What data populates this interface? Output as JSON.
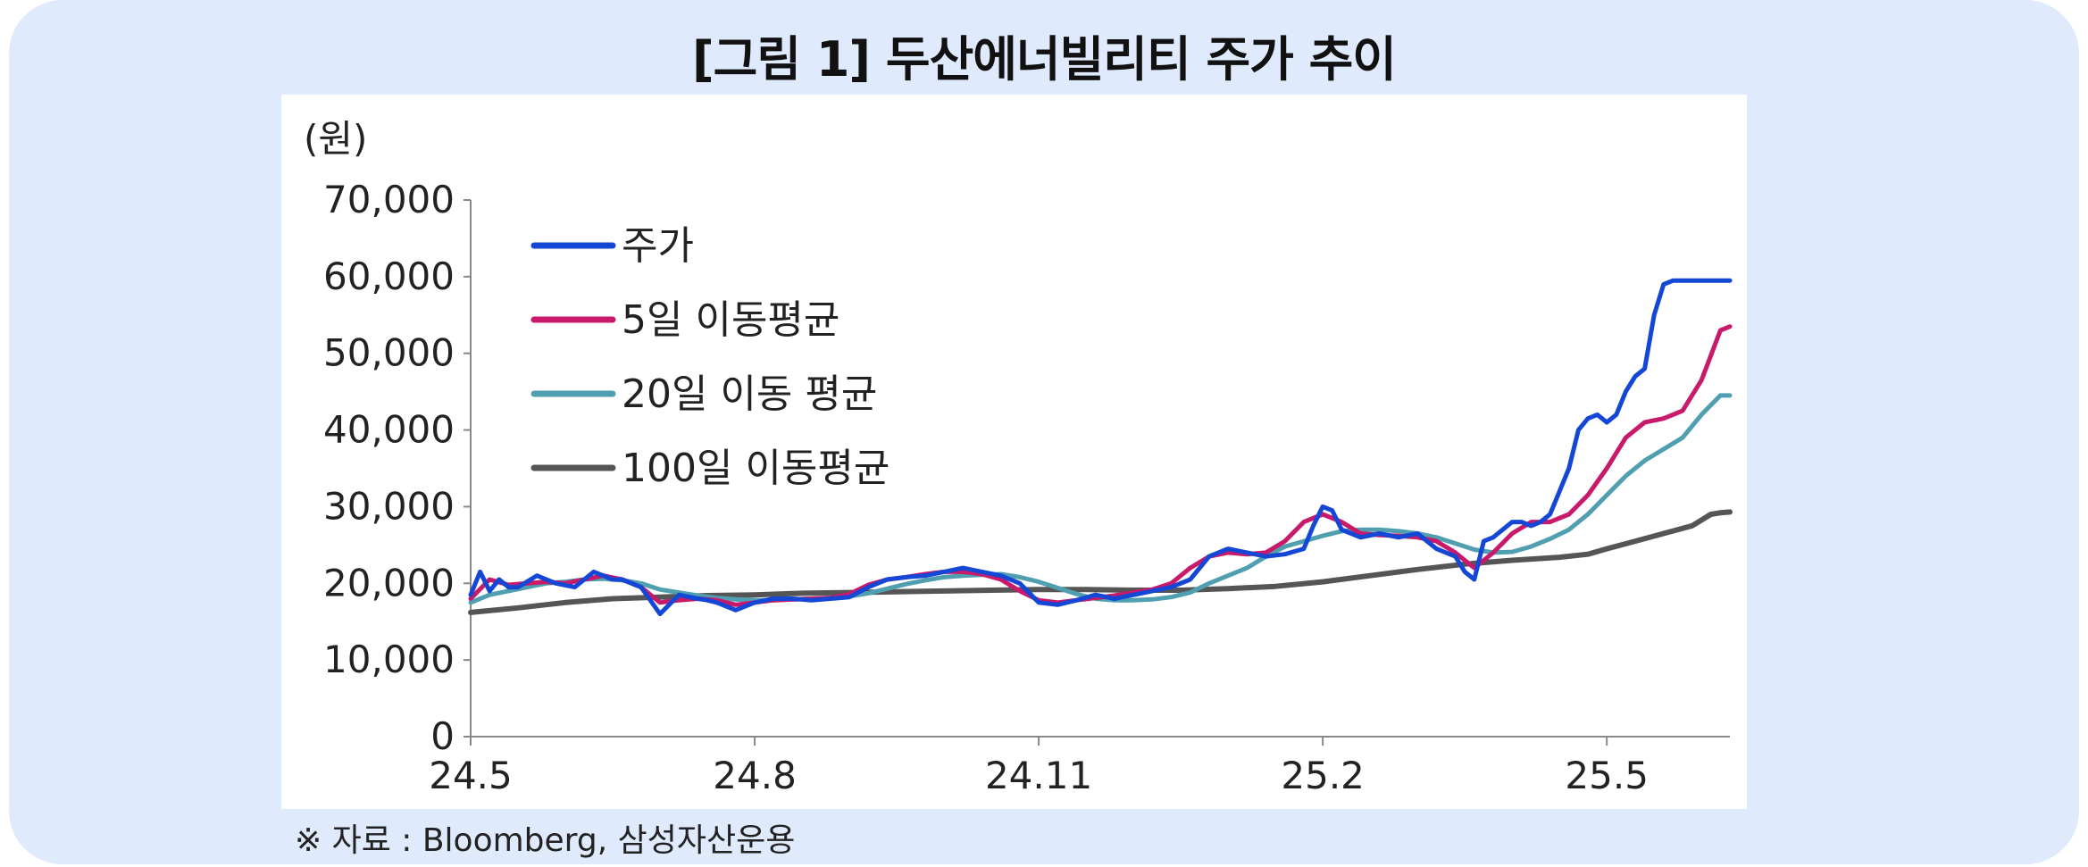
{
  "title": "[그림 1] 두산에너빌리티 주가 추이",
  "source": "※ 자료 : Bloomberg, 삼성자산운용",
  "colors": {
    "panel": "#dfeafc",
    "price": "#1447d6",
    "ma5": "#c8196b",
    "ma20": "#4f9fb0",
    "ma100": "#555555"
  },
  "chart_data": {
    "type": "line",
    "ylabel": "(원)",
    "ylim": [
      0,
      70000
    ],
    "yticks": [
      "70,000",
      "60,000",
      "50,000",
      "40,000",
      "30,000",
      "20,000",
      "10,000",
      "0"
    ],
    "xlim": [
      0,
      13.3
    ],
    "xticks": [
      {
        "label": "24.5",
        "x": 0
      },
      {
        "label": "24.8",
        "x": 3
      },
      {
        "label": "24.11",
        "x": 6
      },
      {
        "label": "25.2",
        "x": 9
      },
      {
        "label": "25.5",
        "x": 12
      }
    ],
    "legend_position": "top-left",
    "series": [
      {
        "name": "주가",
        "color_key": "price",
        "x": [
          0,
          0.1,
          0.2,
          0.3,
          0.4,
          0.5,
          0.7,
          0.9,
          1.1,
          1.3,
          1.5,
          1.6,
          1.8,
          2.0,
          2.2,
          2.4,
          2.5,
          2.6,
          2.8,
          3.0,
          3.2,
          3.4,
          3.6,
          3.8,
          4.0,
          4.2,
          4.4,
          4.6,
          4.8,
          5.0,
          5.2,
          5.4,
          5.6,
          5.8,
          6.0,
          6.2,
          6.4,
          6.6,
          6.8,
          7.0,
          7.2,
          7.4,
          7.6,
          7.8,
          8.0,
          8.2,
          8.4,
          8.6,
          8.8,
          8.9,
          9.0,
          9.1,
          9.2,
          9.3,
          9.4,
          9.6,
          9.8,
          10.0,
          10.2,
          10.4,
          10.5,
          10.6,
          10.7,
          10.8,
          10.9,
          11.0,
          11.1,
          11.2,
          11.3,
          11.4,
          11.5,
          11.6,
          11.7,
          11.8,
          11.9,
          12.0,
          12.1,
          12.2,
          12.3,
          12.4,
          12.5,
          12.6,
          12.7,
          12.8,
          12.9,
          13.0,
          13.1,
          13.2,
          13.3
        ],
        "y": [
          18500,
          21500,
          19000,
          20500,
          19500,
          19500,
          21000,
          20000,
          19500,
          21500,
          20500,
          20500,
          19500,
          16000,
          18500,
          18000,
          17800,
          17500,
          16500,
          17500,
          18000,
          18000,
          17800,
          18000,
          18200,
          19500,
          20500,
          20800,
          21000,
          21500,
          22000,
          21500,
          21000,
          20000,
          17500,
          17200,
          17800,
          18500,
          18000,
          18500,
          19000,
          19500,
          20500,
          23500,
          24500,
          24000,
          23500,
          23800,
          24500,
          27500,
          30000,
          29500,
          27000,
          26500,
          26000,
          26500,
          26000,
          26500,
          24500,
          23500,
          21500,
          20500,
          25500,
          26000,
          27000,
          28000,
          28000,
          27500,
          28000,
          29000,
          32000,
          35000,
          40000,
          41500,
          42000,
          41000,
          42000,
          45000,
          47000,
          48000,
          55000,
          59000,
          59500,
          59500,
          59500,
          59500,
          59500,
          59500,
          59500
        ]
      },
      {
        "name": "5일 이동평균",
        "color_key": "ma5",
        "x": [
          0,
          0.2,
          0.4,
          0.6,
          0.8,
          1.0,
          1.2,
          1.4,
          1.6,
          1.8,
          2.0,
          2.2,
          2.4,
          2.6,
          2.8,
          3.0,
          3.2,
          3.4,
          3.6,
          3.8,
          4.0,
          4.2,
          4.4,
          4.6,
          4.8,
          5.0,
          5.2,
          5.4,
          5.6,
          5.8,
          6.0,
          6.2,
          6.4,
          6.6,
          6.8,
          7.0,
          7.2,
          7.4,
          7.6,
          7.8,
          8.0,
          8.2,
          8.4,
          8.6,
          8.8,
          9.0,
          9.2,
          9.4,
          9.6,
          9.8,
          10.0,
          10.2,
          10.4,
          10.6,
          10.8,
          11.0,
          11.2,
          11.4,
          11.6,
          11.8,
          12.0,
          12.2,
          12.4,
          12.6,
          12.8,
          13.0,
          13.2,
          13.3
        ],
        "y": [
          18000,
          20500,
          19800,
          20000,
          20200,
          20000,
          20500,
          21000,
          20500,
          19500,
          17500,
          17800,
          18000,
          17800,
          17200,
          17500,
          17800,
          17900,
          18000,
          18100,
          18600,
          19800,
          20500,
          20800,
          21200,
          21500,
          21500,
          21200,
          20500,
          19000,
          17800,
          17500,
          17800,
          18100,
          18400,
          18800,
          19200,
          20000,
          22000,
          23500,
          24000,
          23800,
          24000,
          25500,
          28000,
          29000,
          28000,
          26500,
          26300,
          26200,
          26000,
          25500,
          24000,
          22000,
          24000,
          26500,
          28000,
          28000,
          29000,
          31500,
          35000,
          39000,
          41000,
          41500,
          42500,
          46500,
          53000,
          53500
        ]
      },
      {
        "name": "20일 이동 평균",
        "color_key": "ma20",
        "x": [
          0,
          0.2,
          0.4,
          0.6,
          0.8,
          1.0,
          1.2,
          1.4,
          1.6,
          1.8,
          2.0,
          2.2,
          2.4,
          2.6,
          2.8,
          3.0,
          3.2,
          3.4,
          3.6,
          3.8,
          4.0,
          4.2,
          4.4,
          4.6,
          4.8,
          5.0,
          5.2,
          5.4,
          5.6,
          5.8,
          6.0,
          6.2,
          6.4,
          6.6,
          6.8,
          7.0,
          7.2,
          7.4,
          7.6,
          7.8,
          8.0,
          8.2,
          8.4,
          8.6,
          8.8,
          9.0,
          9.2,
          9.4,
          9.6,
          9.8,
          10.0,
          10.2,
          10.4,
          10.6,
          10.8,
          11.0,
          11.2,
          11.4,
          11.6,
          11.8,
          12.0,
          12.2,
          12.4,
          12.6,
          12.8,
          13.0,
          13.2,
          13.3
        ],
        "y": [
          17500,
          18500,
          19000,
          19500,
          20000,
          20200,
          20500,
          20600,
          20400,
          20000,
          19200,
          18800,
          18400,
          18100,
          17900,
          17800,
          17800,
          17900,
          18000,
          18100,
          18300,
          18700,
          19300,
          19900,
          20400,
          20800,
          21000,
          21100,
          21200,
          20800,
          20200,
          19400,
          18600,
          18000,
          17800,
          17800,
          17900,
          18200,
          18800,
          20000,
          21000,
          22000,
          23500,
          24800,
          25500,
          26200,
          26800,
          27000,
          27000,
          26800,
          26500,
          26000,
          25200,
          24400,
          24000,
          24100,
          24800,
          25800,
          27000,
          29000,
          31500,
          34000,
          36000,
          37500,
          39000,
          42000,
          44500,
          44500
        ]
      },
      {
        "name": "100일 이동평균",
        "color_key": "ma100",
        "x": [
          0,
          0.5,
          1.0,
          1.5,
          2.0,
          2.5,
          3.0,
          3.5,
          4.0,
          4.5,
          5.0,
          5.5,
          6.0,
          6.5,
          7.0,
          7.5,
          8.0,
          8.5,
          9.0,
          9.5,
          10.0,
          10.5,
          11.0,
          11.5,
          11.8,
          12.0,
          12.3,
          12.6,
          12.9,
          13.1,
          13.2,
          13.3
        ],
        "y": [
          16200,
          16800,
          17500,
          18000,
          18200,
          18400,
          18500,
          18700,
          18800,
          18900,
          19000,
          19100,
          19200,
          19200,
          19100,
          19100,
          19300,
          19600,
          20200,
          21000,
          21800,
          22500,
          23000,
          23400,
          23800,
          24500,
          25500,
          26500,
          27500,
          29000,
          29200,
          29300
        ]
      }
    ]
  }
}
